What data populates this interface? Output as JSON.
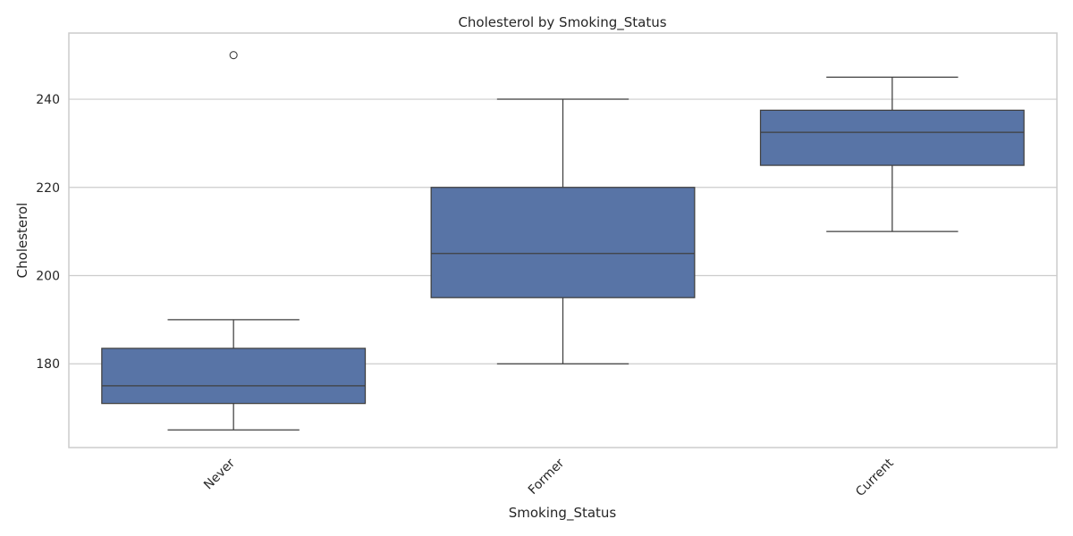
{
  "chart_data": {
    "type": "box",
    "title": "Cholesterol by Smoking_Status",
    "xlabel": "Smoking_Status",
    "ylabel": "Cholesterol",
    "ylim": [
      161,
      255
    ],
    "yticks": [
      180,
      200,
      220,
      240
    ],
    "grid": true,
    "x_tick_rotation_deg": 45,
    "colors": {
      "box_fill": "#5874a6",
      "line": "#3f3f3f",
      "grid": "#cccccc"
    },
    "categories": [
      "Never",
      "Former",
      "Current"
    ],
    "series": [
      {
        "category": "Never",
        "whisker_low": 165,
        "q1": 171,
        "median": 175,
        "q3": 183.5,
        "whisker_high": 190,
        "outliers": [
          250
        ]
      },
      {
        "category": "Former",
        "whisker_low": 180,
        "q1": 195,
        "median": 205,
        "q3": 220,
        "whisker_high": 240,
        "outliers": []
      },
      {
        "category": "Current",
        "whisker_low": 210,
        "q1": 225,
        "median": 232.5,
        "q3": 237.5,
        "whisker_high": 245,
        "outliers": []
      }
    ]
  }
}
